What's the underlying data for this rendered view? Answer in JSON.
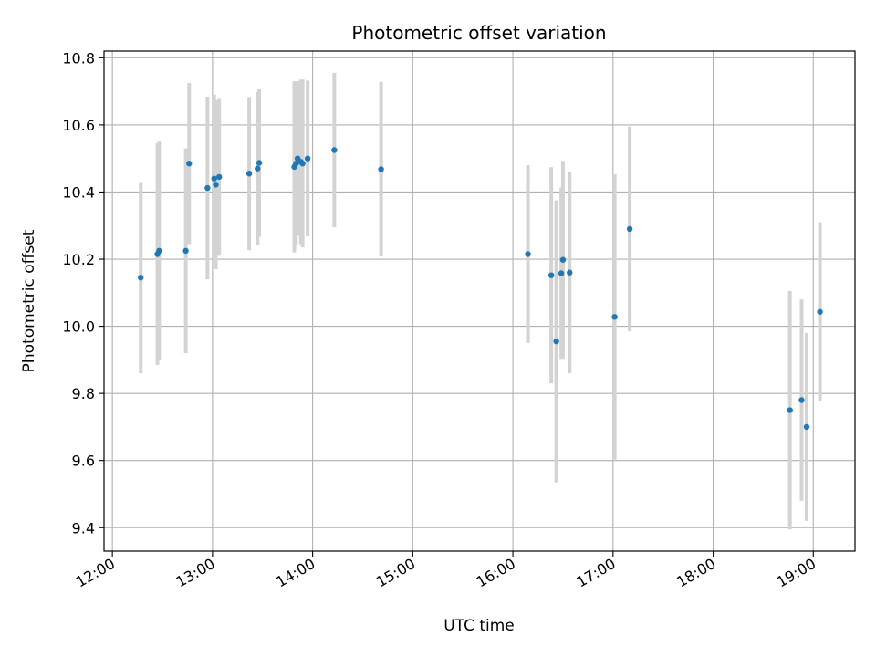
{
  "chart_data": {
    "type": "scatter",
    "title": "Photometric offset variation",
    "xlabel": "UTC time",
    "ylabel": "Photometric offset",
    "x_ticks": [
      "12:00",
      "13:00",
      "14:00",
      "15:00",
      "16:00",
      "17:00",
      "18:00",
      "19:00"
    ],
    "y_ticks": [
      "9.4",
      "9.6",
      "9.8",
      "10.0",
      "10.2",
      "10.4",
      "10.6",
      "10.8"
    ],
    "xlim": [
      "11:55",
      "19:25"
    ],
    "ylim": [
      9.33,
      10.82
    ],
    "grid": true,
    "legend": false,
    "colors": {
      "point": "#1f77b4",
      "errorbar": "#d3d3d3",
      "grid": "#b0b0b0"
    },
    "points": [
      {
        "x": "12:17",
        "y": 10.145,
        "err": 0.285
      },
      {
        "x": "12:27",
        "y": 10.215,
        "err": 0.33
      },
      {
        "x": "12:28",
        "y": 10.225,
        "err": 0.325
      },
      {
        "x": "12:44",
        "y": 10.225,
        "err": 0.305
      },
      {
        "x": "12:46",
        "y": 10.485,
        "err": 0.24
      },
      {
        "x": "12:57",
        "y": 10.412,
        "err": 0.272
      },
      {
        "x": "13:01",
        "y": 10.44,
        "err": 0.25
      },
      {
        "x": "13:02",
        "y": 10.422,
        "err": 0.252
      },
      {
        "x": "13:04",
        "y": 10.445,
        "err": 0.235
      },
      {
        "x": "13:22",
        "y": 10.455,
        "err": 0.228
      },
      {
        "x": "13:27",
        "y": 10.47,
        "err": 0.228
      },
      {
        "x": "13:28",
        "y": 10.487,
        "err": 0.22
      },
      {
        "x": "13:49",
        "y": 10.475,
        "err": 0.255
      },
      {
        "x": "13:50",
        "y": 10.485,
        "err": 0.245
      },
      {
        "x": "13:51",
        "y": 10.5,
        "err": 0.23
      },
      {
        "x": "13:53",
        "y": 10.49,
        "err": 0.245
      },
      {
        "x": "13:54",
        "y": 10.485,
        "err": 0.25
      },
      {
        "x": "13:57",
        "y": 10.5,
        "err": 0.232
      },
      {
        "x": "14:13",
        "y": 10.525,
        "err": 0.23
      },
      {
        "x": "14:41",
        "y": 10.468,
        "err": 0.26
      },
      {
        "x": "16:09",
        "y": 10.215,
        "err": 0.265
      },
      {
        "x": "16:23",
        "y": 10.152,
        "err": 0.322
      },
      {
        "x": "16:26",
        "y": 9.955,
        "err": 0.42
      },
      {
        "x": "16:29",
        "y": 10.158,
        "err": 0.255
      },
      {
        "x": "16:30",
        "y": 10.198,
        "err": 0.295
      },
      {
        "x": "16:34",
        "y": 10.16,
        "err": 0.3
      },
      {
        "x": "17:01",
        "y": 10.028,
        "err": 0.425
      },
      {
        "x": "17:10",
        "y": 10.29,
        "err": 0.305
      },
      {
        "x": "18:46",
        "y": 9.75,
        "err": 0.355
      },
      {
        "x": "18:53",
        "y": 9.78,
        "err": 0.3
      },
      {
        "x": "18:56",
        "y": 9.7,
        "err": 0.28
      },
      {
        "x": "19:04",
        "y": 10.043,
        "err": 0.267
      }
    ]
  }
}
